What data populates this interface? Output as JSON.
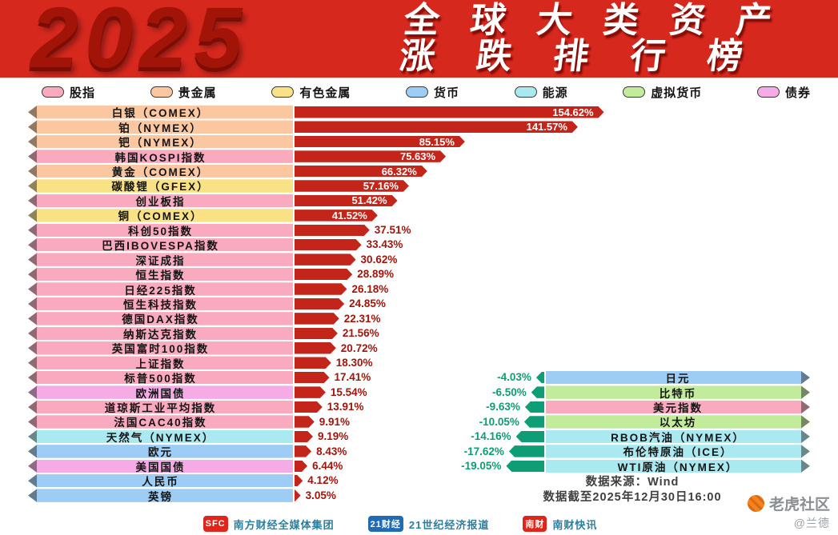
{
  "header": {
    "year": "2025",
    "title_line1": "全球大类资产",
    "title_line2": "涨跌排行榜"
  },
  "legend": [
    {
      "label": "股指",
      "color": "#f9aabe"
    },
    {
      "label": "贵金属",
      "color": "#fbc7a0"
    },
    {
      "label": "有色金属",
      "color": "#f9e186"
    },
    {
      "label": "货币",
      "color": "#9dcdf5"
    },
    {
      "label": "能源",
      "color": "#abe9f0"
    },
    {
      "label": "虚拟货币",
      "color": "#c2ec9b"
    },
    {
      "label": "债券",
      "color": "#f5abe6"
    }
  ],
  "chart_data": {
    "type": "bar",
    "orientation": "horizontal",
    "title": "2025 全球大类资产涨跌排行榜",
    "value_unit": "%",
    "xlim": [
      -20,
      160
    ],
    "legend_position": "top",
    "positive_bar_color": "#c4251a",
    "negative_bar_color": "#0e9d74",
    "rows": [
      {
        "label": "白银（COMEX）",
        "category": "贵金属",
        "value": 154.62,
        "display": "154.62%"
      },
      {
        "label": "铂（NYMEX）",
        "category": "贵金属",
        "value": 141.57,
        "display": "141.57%"
      },
      {
        "label": "钯（NYMEX）",
        "category": "贵金属",
        "value": 85.15,
        "display": "85.15%"
      },
      {
        "label": "韩国KOSPI指数",
        "category": "股指",
        "value": 75.63,
        "display": "75.63%"
      },
      {
        "label": "黄金（COMEX）",
        "category": "贵金属",
        "value": 66.32,
        "display": "66.32%"
      },
      {
        "label": "碳酸锂（GFEX）",
        "category": "有色金属",
        "value": 57.16,
        "display": "57.16%"
      },
      {
        "label": "创业板指",
        "category": "股指",
        "value": 51.42,
        "display": "51.42%"
      },
      {
        "label": "铜（COMEX）",
        "category": "有色金属",
        "value": 41.52,
        "display": "41.52%"
      },
      {
        "label": "科创50指数",
        "category": "股指",
        "value": 37.51,
        "display": "37.51%"
      },
      {
        "label": "巴西IBOVESPA指数",
        "category": "股指",
        "value": 33.43,
        "display": "33.43%"
      },
      {
        "label": "深证成指",
        "category": "股指",
        "value": 30.62,
        "display": "30.62%"
      },
      {
        "label": "恒生指数",
        "category": "股指",
        "value": 28.89,
        "display": "28.89%"
      },
      {
        "label": "日经225指数",
        "category": "股指",
        "value": 26.18,
        "display": "26.18%"
      },
      {
        "label": "恒生科技指数",
        "category": "股指",
        "value": 24.85,
        "display": "24.85%"
      },
      {
        "label": "德国DAX指数",
        "category": "股指",
        "value": 22.31,
        "display": "22.31%"
      },
      {
        "label": "纳斯达克指数",
        "category": "股指",
        "value": 21.56,
        "display": "21.56%"
      },
      {
        "label": "英国富时100指数",
        "category": "股指",
        "value": 20.72,
        "display": "20.72%"
      },
      {
        "label": "上证指数",
        "category": "股指",
        "value": 18.3,
        "display": "18.30%"
      },
      {
        "label": "标普500指数",
        "category": "股指",
        "value": 17.41,
        "display": "17.41%"
      },
      {
        "label": "欧洲国债",
        "category": "债券",
        "value": 15.54,
        "display": "15.54%"
      },
      {
        "label": "道琼斯工业平均指数",
        "category": "股指",
        "value": 13.91,
        "display": "13.91%"
      },
      {
        "label": "法国CAC40指数",
        "category": "股指",
        "value": 9.91,
        "display": "9.91%"
      },
      {
        "label": "天然气（NYMEX）",
        "category": "能源",
        "value": 9.19,
        "display": "9.19%"
      },
      {
        "label": "欧元",
        "category": "货币",
        "value": 8.43,
        "display": "8.43%"
      },
      {
        "label": "美国国债",
        "category": "债券",
        "value": 6.44,
        "display": "6.44%"
      },
      {
        "label": "人民币",
        "category": "货币",
        "value": 4.12,
        "display": "4.12%"
      },
      {
        "label": "英镑",
        "category": "货币",
        "value": 3.05,
        "display": "3.05%"
      }
    ],
    "negative_rows": [
      {
        "label": "日元",
        "category": "货币",
        "value": -4.03,
        "display": "-4.03%",
        "align_row": 18
      },
      {
        "label": "比特币",
        "category": "虚拟货币",
        "value": -6.5,
        "display": "-6.50%",
        "align_row": 19
      },
      {
        "label": "美元指数",
        "category": "股指",
        "value": -9.63,
        "display": "-9.63%",
        "align_row": 20
      },
      {
        "label": "以太坊",
        "category": "虚拟货币",
        "value": -10.05,
        "display": "-10.05%",
        "align_row": 21
      },
      {
        "label": "RBOB汽油（NYMEX）",
        "category": "能源",
        "value": -14.16,
        "display": "-14.16%",
        "align_row": 22
      },
      {
        "label": "布伦特原油（ICE）",
        "category": "能源",
        "value": -17.62,
        "display": "-17.62%",
        "align_row": 23
      },
      {
        "label": "WTI原油（NYMEX）",
        "category": "能源",
        "value": -19.05,
        "display": "-19.05%",
        "align_row": 24
      }
    ]
  },
  "source": {
    "line1": "数据来源：Wind",
    "line2": "数据截至2025年12月30日16:00"
  },
  "footer_brands": [
    {
      "logo": "SFC",
      "logo_color": "#e0251c",
      "name": "南方财经全媒体集团"
    },
    {
      "logo": "21财经",
      "logo_color": "#1f6bb4",
      "name": "21世纪经济报道"
    },
    {
      "logo": "南财",
      "logo_color": "#e0251c",
      "name": "南财快讯"
    }
  ],
  "watermark": {
    "name": "老虎社区",
    "handle": "@兰德"
  }
}
